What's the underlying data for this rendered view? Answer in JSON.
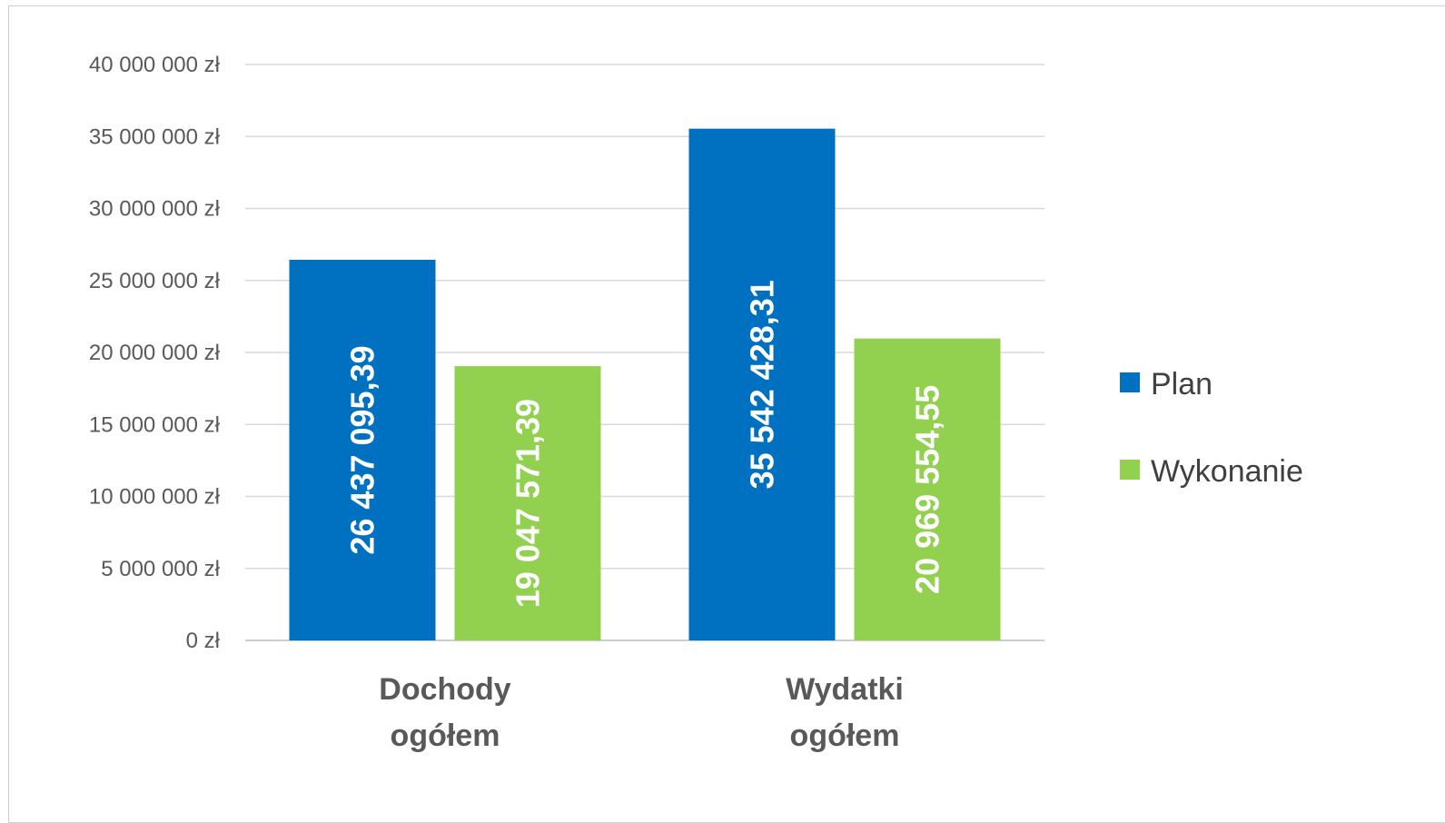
{
  "chart_data": {
    "type": "bar",
    "categories": [
      [
        "Dochody",
        "ogółem"
      ],
      [
        "Wydatki",
        "ogółem"
      ]
    ],
    "series": [
      {
        "name": "Plan",
        "color": "#0070C0",
        "values": [
          26437095.39,
          35542428.31
        ],
        "labels": [
          "26 437 095,39",
          "35 542 428,31"
        ]
      },
      {
        "name": "Wykonanie",
        "color": "#92D050",
        "values": [
          19047571.39,
          20969554.55
        ],
        "labels": [
          "19 047 571,39",
          "20 969 554,55"
        ]
      }
    ],
    "ylim": [
      0,
      40000000
    ],
    "yticks": [
      0,
      5000000,
      10000000,
      15000000,
      20000000,
      25000000,
      30000000,
      35000000,
      40000000
    ],
    "ytick_labels": [
      "0 zł",
      "5 000 000 zł",
      "10 000 000 zł",
      "15 000 000 zł",
      "20 000 000 zł",
      "25 000 000 zł",
      "30 000 000 zł",
      "35 000 000 zł",
      "40 000 000 zł"
    ],
    "grid": true,
    "legend_position": "right"
  }
}
